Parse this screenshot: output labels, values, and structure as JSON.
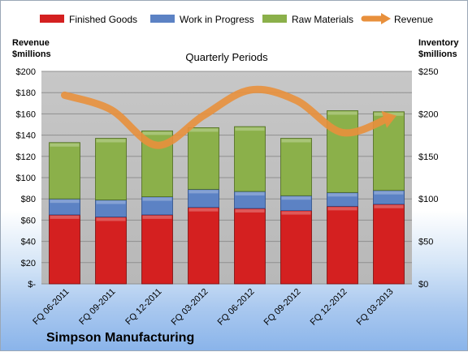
{
  "chart_data": {
    "type": "bar",
    "stacked": true,
    "title": "Quarterly Periods",
    "company": "Simpson Manufacturing",
    "left_axis": {
      "label_line1": "Revenue",
      "label_line2": "$millions",
      "ylim": [
        0,
        200
      ],
      "ticks": [
        0,
        20,
        40,
        60,
        80,
        100,
        120,
        140,
        160,
        180,
        200
      ],
      "tick_labels": [
        "$-",
        "$20",
        "$40",
        "$60",
        "$80",
        "$100",
        "$120",
        "$140",
        "$160",
        "$180",
        "$200"
      ]
    },
    "right_axis": {
      "label_line1": "Inventory",
      "label_line2": "$millions",
      "ylim": [
        0,
        250
      ],
      "ticks": [
        0,
        50,
        100,
        150,
        200,
        250
      ],
      "tick_labels": [
        "$0",
        "$50",
        "$100",
        "$150",
        "$200",
        "$250"
      ]
    },
    "categories": [
      "FQ 06-2011",
      "FQ 09-2011",
      "FQ 12-2011",
      "FQ 03-2012",
      "FQ 06-2012",
      "FQ 09-2012",
      "FQ 12-2012",
      "FQ 03-2013"
    ],
    "series": [
      {
        "name": "Finished Goods",
        "axis": "left",
        "color": "#d42020",
        "values": [
          65,
          63,
          65,
          72,
          71,
          69,
          73,
          75
        ]
      },
      {
        "name": "Work in Progress",
        "axis": "left",
        "color": "#5c82c4",
        "values": [
          15,
          16,
          17,
          17,
          16,
          14,
          13,
          13
        ]
      },
      {
        "name": "Raw Materials",
        "axis": "left",
        "color": "#8bb04a",
        "values": [
          53,
          58,
          62,
          58,
          61,
          54,
          77,
          74
        ]
      }
    ],
    "line_series": {
      "name": "Revenue",
      "axis": "right",
      "color": "#e8903c",
      "values": [
        222,
        205,
        163,
        198,
        228,
        216,
        178,
        195
      ]
    },
    "grid": true,
    "legend_position": "top"
  }
}
